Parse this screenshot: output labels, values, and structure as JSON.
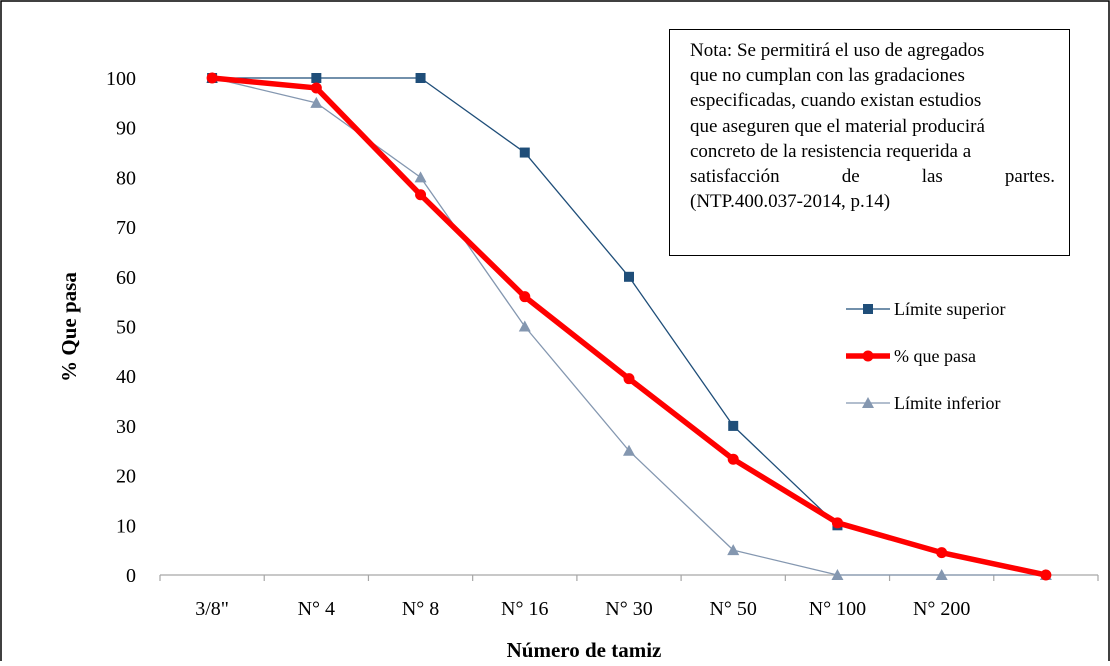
{
  "chart_data": {
    "type": "line",
    "categories": [
      "3/8\"",
      "N° 4",
      "N° 8",
      "N° 16",
      "N° 30",
      "N° 50",
      "N° 100",
      "N° 200",
      ""
    ],
    "series": [
      {
        "name": "Límite superior",
        "values": [
          100,
          100,
          100,
          85,
          60,
          30,
          10,
          null,
          null
        ],
        "color": "#1f4e79",
        "marker": "square"
      },
      {
        "name": "% que pasa",
        "values": [
          100,
          98,
          76.5,
          56,
          39.5,
          23.3,
          10.5,
          4.5,
          0
        ],
        "color": "#ff0000",
        "marker": "circle"
      },
      {
        "name": "Límite inferior",
        "values": [
          100,
          95,
          80,
          50,
          25,
          5,
          0,
          0,
          0
        ],
        "color": "#8497b0",
        "marker": "triangle"
      }
    ],
    "xlabel": "Número de tamiz",
    "ylabel": "% Que pasa",
    "ylim": [
      0,
      100
    ],
    "yticks": [
      "0",
      "10",
      "20",
      "30",
      "40",
      "50",
      "60",
      "70",
      "80",
      "90",
      "100"
    ],
    "grid": false,
    "legend_position": "right"
  },
  "note": {
    "lines": [
      "Nota: Se permitirá  el uso de agregados",
      "que no cumplan con las gradaciones",
      "especificadas, cuando existan estudios",
      "que aseguren que el material producirá",
      "concreto de la resistencia requerida a",
      "satisfacción de las partes.",
      "(NTP.400.037-2014, p.14)"
    ]
  }
}
